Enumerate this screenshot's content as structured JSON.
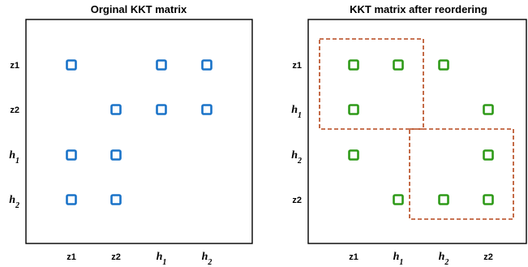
{
  "panels": [
    {
      "title": "Orginal KKT matrix",
      "marker_color": "#1a73c8",
      "rows": [
        {
          "base": "z1",
          "sub": "",
          "math": false
        },
        {
          "base": "z2",
          "sub": "",
          "math": false
        },
        {
          "base": "h",
          "sub": "1",
          "math": true
        },
        {
          "base": "h",
          "sub": "2",
          "math": true
        }
      ],
      "cols": [
        {
          "base": "z1",
          "sub": "",
          "math": false
        },
        {
          "base": "z2",
          "sub": "",
          "math": false
        },
        {
          "base": "h",
          "sub": "1",
          "math": true
        },
        {
          "base": "h",
          "sub": "2",
          "math": true
        }
      ],
      "nonzeros": [
        [
          0,
          0
        ],
        [
          0,
          2
        ],
        [
          0,
          3
        ],
        [
          1,
          1
        ],
        [
          1,
          2
        ],
        [
          1,
          3
        ],
        [
          2,
          0
        ],
        [
          2,
          1
        ],
        [
          3,
          0
        ],
        [
          3,
          1
        ]
      ],
      "blocks": []
    },
    {
      "title": "KKT matrix after reordering",
      "marker_color": "#2e9a18",
      "rows": [
        {
          "base": "z1",
          "sub": "",
          "math": false
        },
        {
          "base": "h",
          "sub": "1",
          "math": true
        },
        {
          "base": "h",
          "sub": "2",
          "math": true
        },
        {
          "base": "z2",
          "sub": "",
          "math": false
        }
      ],
      "cols": [
        {
          "base": "z1",
          "sub": "",
          "math": false
        },
        {
          "base": "h",
          "sub": "1",
          "math": true
        },
        {
          "base": "h",
          "sub": "2",
          "math": true
        },
        {
          "base": "z2",
          "sub": "",
          "math": false
        }
      ],
      "nonzeros": [
        [
          0,
          0
        ],
        [
          0,
          1
        ],
        [
          0,
          2
        ],
        [
          1,
          0
        ],
        [
          1,
          3
        ],
        [
          2,
          0
        ],
        [
          2,
          3
        ],
        [
          3,
          1
        ],
        [
          3,
          2
        ],
        [
          3,
          3
        ]
      ],
      "blocks": [
        {
          "rows": [
            0,
            1
          ],
          "cols": [
            0,
            1
          ]
        },
        {
          "rows": [
            2,
            3
          ],
          "cols": [
            2,
            3
          ]
        }
      ]
    }
  ]
}
